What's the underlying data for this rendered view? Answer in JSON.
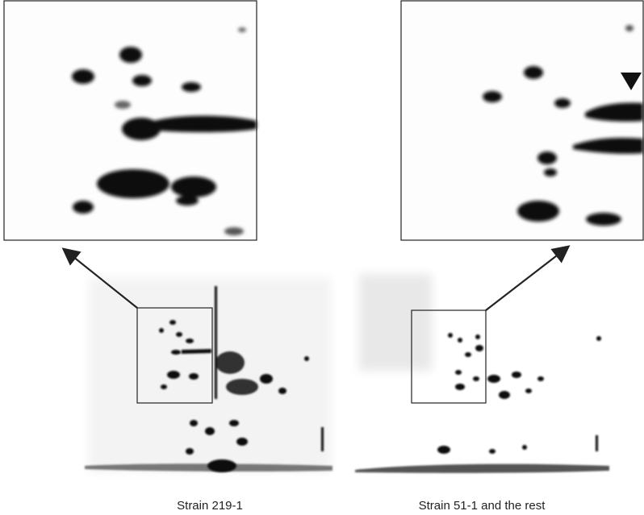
{
  "panels": [
    {
      "label": "Strain 219-1"
    },
    {
      "label": "Strain 51-1 and the rest"
    }
  ]
}
